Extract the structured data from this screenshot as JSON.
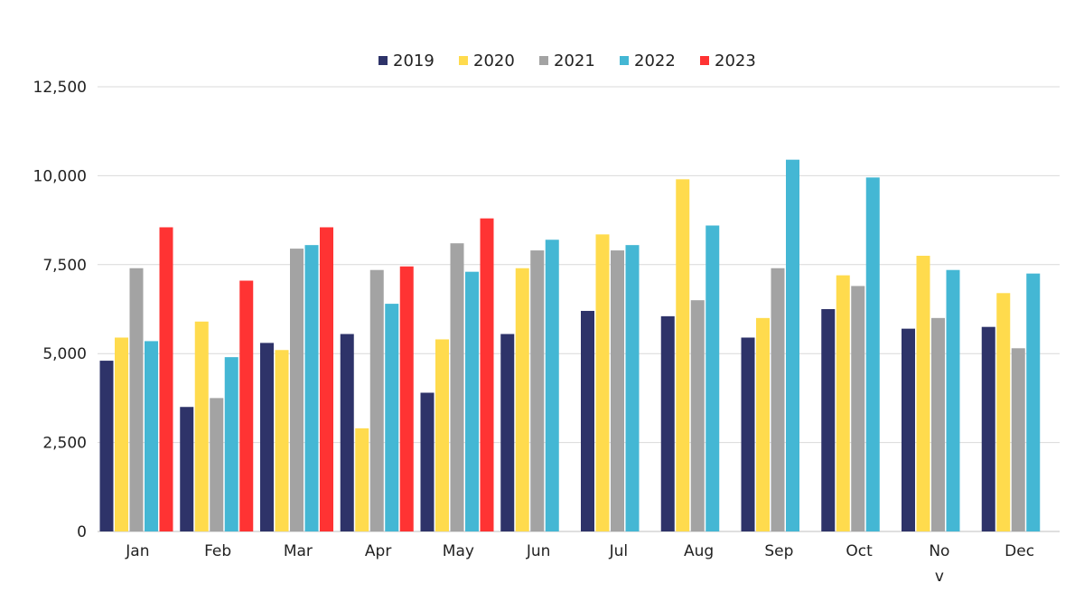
{
  "chart_data": {
    "type": "bar",
    "title": "",
    "xlabel": "",
    "ylabel": "",
    "categories": [
      "Jan",
      "Feb",
      "Mar",
      "Apr",
      "May",
      "Jun",
      "Jul",
      "Aug",
      "Sep",
      "Oct",
      "Nov",
      "Dec"
    ],
    "category_display": [
      "Jan",
      "Feb",
      "Mar",
      "Apr",
      "May",
      "Jun",
      "Jul",
      "Aug",
      "Sep",
      "Oct",
      "No\nv",
      "Dec"
    ],
    "ylim": [
      0,
      12500
    ],
    "yticks": [
      0,
      2500,
      5000,
      7500,
      10000,
      12500
    ],
    "ytick_labels": [
      "0",
      "2,500",
      "5,000",
      "7,500",
      "10,000",
      "12,500"
    ],
    "grid": true,
    "legend_position": "top-center",
    "series": [
      {
        "name": "2019",
        "color": "#2e3369",
        "values": [
          4800,
          3500,
          5300,
          5550,
          3900,
          5550,
          6200,
          6050,
          5450,
          6250,
          5700,
          5750
        ]
      },
      {
        "name": "2020",
        "color": "#ffdb4d",
        "values": [
          5450,
          5900,
          5100,
          2900,
          5400,
          7400,
          8350,
          9900,
          6000,
          7200,
          7750,
          6700
        ]
      },
      {
        "name": "2021",
        "color": "#a3a3a3",
        "values": [
          7400,
          3750,
          7950,
          7350,
          8100,
          7900,
          7900,
          6500,
          7400,
          6900,
          6000,
          5150
        ]
      },
      {
        "name": "2022",
        "color": "#44b7d4",
        "values": [
          5350,
          4900,
          8050,
          6400,
          7300,
          8200,
          8050,
          8600,
          10450,
          9950,
          7350,
          7250
        ]
      },
      {
        "name": "2023",
        "color": "#ff3333",
        "values": [
          8550,
          7050,
          8550,
          7450,
          8800,
          null,
          null,
          null,
          null,
          null,
          null,
          null
        ]
      }
    ]
  }
}
